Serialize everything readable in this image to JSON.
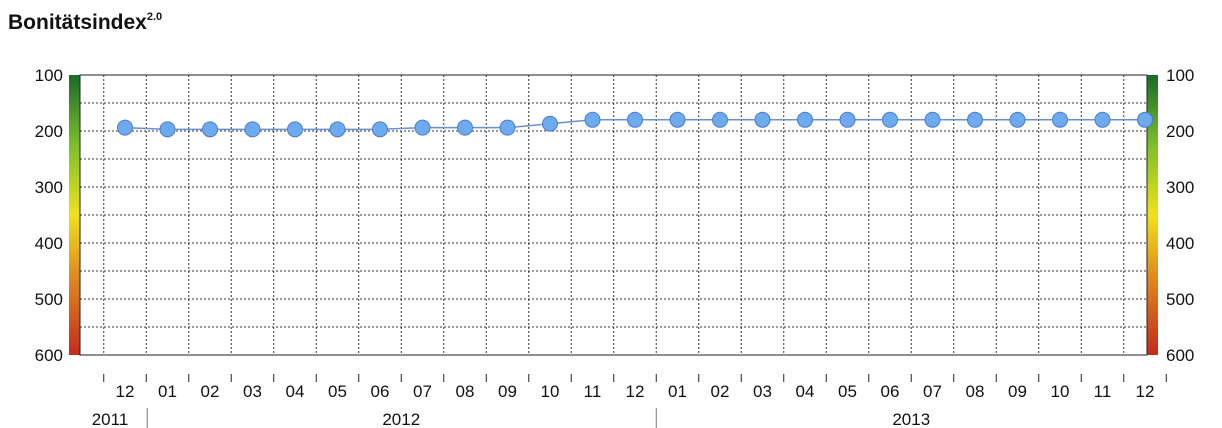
{
  "chart_data": {
    "type": "line",
    "title": "Bonitätsindex",
    "title_superscript": "2.0",
    "ylim": [
      100,
      600
    ],
    "y_inverted": true,
    "y_ticks": [
      100,
      200,
      300,
      400,
      500,
      600
    ],
    "y_tick_labels": [
      "100",
      "200",
      "300",
      "400",
      "500",
      "600"
    ],
    "grid": true,
    "legend": "none",
    "x": [
      "2011-12",
      "2012-01",
      "2012-02",
      "2012-03",
      "2012-04",
      "2012-05",
      "2012-06",
      "2012-07",
      "2012-08",
      "2012-09",
      "2012-10",
      "2012-11",
      "2012-12",
      "2013-01",
      "2013-02",
      "2013-03",
      "2013-04",
      "2013-05",
      "2013-06",
      "2013-07",
      "2013-08",
      "2013-09",
      "2013-10",
      "2013-11",
      "2013-12"
    ],
    "month_labels": [
      "12",
      "01",
      "02",
      "03",
      "04",
      "05",
      "06",
      "07",
      "08",
      "09",
      "10",
      "11",
      "12",
      "01",
      "02",
      "03",
      "04",
      "05",
      "06",
      "07",
      "08",
      "09",
      "10",
      "11",
      "12"
    ],
    "year_labels": [
      {
        "label": "2011",
        "months": [
          0,
          0
        ]
      },
      {
        "label": "2012",
        "months": [
          1,
          12
        ]
      },
      {
        "label": "2013",
        "months": [
          13,
          24
        ]
      }
    ],
    "series": [
      {
        "values": [
          194,
          197,
          197,
          197,
          197,
          197,
          197,
          194,
          194,
          194,
          187,
          180,
          180,
          180,
          180,
          180,
          180,
          180,
          180,
          180,
          180,
          180,
          180,
          180,
          180
        ]
      }
    ],
    "colors": {
      "line": "#6b8fcf",
      "marker_fill": "#6eaaf0",
      "marker_stroke": "#4a7cc4",
      "grid": "#333333",
      "gradient_top": "#1a6b2a",
      "gradient_upper": "#7cbf2a",
      "gradient_mid": "#f0e21a",
      "gradient_lower": "#e08a1e",
      "gradient_bottom": "#c42a1e"
    }
  }
}
